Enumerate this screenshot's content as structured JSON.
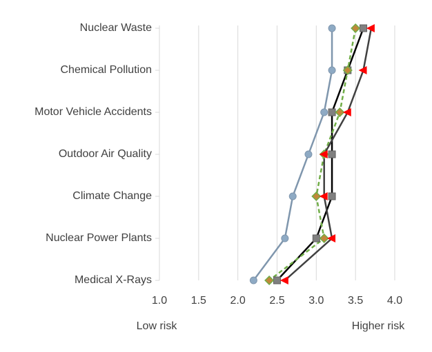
{
  "chart_data": {
    "type": "dot-line",
    "categories": [
      "Nuclear Waste",
      "Chemical Pollution",
      "Motor Vehicle Accidents",
      "Outdoor Air Quality",
      "Climate Change",
      "Nuclear Power Plants",
      "Medical X-Rays"
    ],
    "series": [
      {
        "color": "#8eaac4",
        "line_color": "#7f96ad",
        "marker": "circle",
        "dashed": false,
        "values": [
          3.2,
          3.2,
          3.1,
          2.9,
          2.7,
          2.6,
          2.2
        ]
      },
      {
        "color": "#808080",
        "line_color": "#000000",
        "marker": "square",
        "dashed": false,
        "values": [
          3.6,
          3.4,
          3.2,
          3.2,
          3.2,
          3.0,
          2.5
        ]
      },
      {
        "color": "#c0883a",
        "line_color": "#70ad47",
        "marker": "diamond",
        "dashed": true,
        "values": [
          3.5,
          3.4,
          3.3,
          3.1,
          3.0,
          3.1,
          2.4
        ]
      },
      {
        "color": "#ff0000",
        "line_color": "#404040",
        "marker": "triangle",
        "dashed": false,
        "values": [
          3.7,
          3.6,
          3.4,
          3.1,
          3.1,
          3.2,
          2.6
        ]
      }
    ],
    "xlim": [
      1.0,
      4.0
    ],
    "xticks": [
      {
        "value": 1.0,
        "label": "1.0"
      },
      1.5,
      {
        "value": 2.0,
        "label": "2.0"
      },
      2.5,
      {
        "value": 3.0,
        "label": "3.0"
      },
      3.5,
      {
        "value": 4.0,
        "label": "4.0"
      }
    ],
    "annotations": [
      "Low risk",
      "Higher risk"
    ],
    "grid": true
  }
}
